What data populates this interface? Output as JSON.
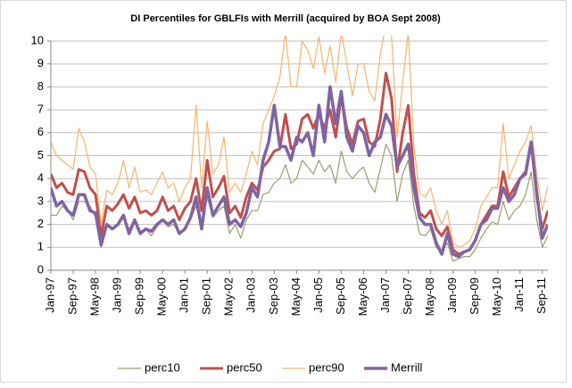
{
  "chart_data": {
    "type": "line",
    "title": "DI Percentiles for GBLFIs with Merrill (acquired by BOA Sept 2008)",
    "categories": [
      "Jan-97",
      null,
      null,
      null,
      "Sep-97",
      null,
      null,
      null,
      "May-98",
      null,
      null,
      null,
      "Jan-99",
      null,
      null,
      null,
      "Sep-99",
      null,
      null,
      null,
      "May-00",
      null,
      null,
      null,
      "Jan-01",
      null,
      null,
      null,
      "Sep-01",
      null,
      null,
      null,
      "May-02",
      null,
      null,
      null,
      "Jan-03",
      null,
      null,
      null,
      "Sep-03",
      null,
      null,
      null,
      "May-04",
      null,
      null,
      null,
      "Jan-05",
      null,
      null,
      null,
      "Sep-05",
      null,
      null,
      null,
      "May-06",
      null,
      null,
      null,
      "Jan-07",
      null,
      null,
      null,
      "Sep-07",
      null,
      null,
      null,
      "May-08",
      null,
      null,
      null,
      "Jan-09",
      null,
      null,
      null,
      "Sep-09",
      null,
      null,
      null,
      "May-10",
      null,
      null,
      null,
      "Jan-11",
      null,
      null,
      null,
      "Sep-11",
      null
    ],
    "series": [
      {
        "name": "perc10",
        "color": "#9c9b6d",
        "width": 1.2,
        "values": [
          2.4,
          2.4,
          2.8,
          2.6,
          2.2,
          3.0,
          3.0,
          2.8,
          2.3,
          1.0,
          2.0,
          1.8,
          2.0,
          2.3,
          1.8,
          2.2,
          1.7,
          1.8,
          1.5,
          1.9,
          2.2,
          1.9,
          2.0,
          1.6,
          1.8,
          2.2,
          2.8,
          1.8,
          3.2,
          2.3,
          2.6,
          2.8,
          1.6,
          2.0,
          1.4,
          2.2,
          2.6,
          2.6,
          3.3,
          3.4,
          3.8,
          4.0,
          4.6,
          3.8,
          4.0,
          4.8,
          4.5,
          4.2,
          4.8,
          4.3,
          4.6,
          3.8,
          5.2,
          4.3,
          4.0,
          4.3,
          4.5,
          3.8,
          3.4,
          4.4,
          5.5,
          5.0,
          3.0,
          4.2,
          4.8,
          2.8,
          1.6,
          1.5,
          1.8,
          1.0,
          0.8,
          1.2,
          0.4,
          0.5,
          0.6,
          0.6,
          0.9,
          1.4,
          1.8,
          2.1,
          2.0,
          3.0,
          2.2,
          2.6,
          2.8,
          3.3,
          4.3,
          2.2,
          1.0,
          1.5
        ]
      },
      {
        "name": "perc50",
        "color": "#c0504d",
        "width": 3,
        "values": [
          4.2,
          3.6,
          3.8,
          3.4,
          3.3,
          4.4,
          4.3,
          3.6,
          3.3,
          1.5,
          2.8,
          2.6,
          2.9,
          3.3,
          2.7,
          3.2,
          2.5,
          2.6,
          2.4,
          2.6,
          3.2,
          2.6,
          2.8,
          2.2,
          2.7,
          3.0,
          4.0,
          2.6,
          4.8,
          3.2,
          3.6,
          4.1,
          2.5,
          2.8,
          2.3,
          3.2,
          3.8,
          3.5,
          4.5,
          4.8,
          5.2,
          5.3,
          6.8,
          5.3,
          5.5,
          6.6,
          6.8,
          6.2,
          6.8,
          6.2,
          7.0,
          5.8,
          7.6,
          6.2,
          5.5,
          6.5,
          6.6,
          5.6,
          5.4,
          6.6,
          8.6,
          7.5,
          4.3,
          6.0,
          7.2,
          4.2,
          2.5,
          2.3,
          2.6,
          1.8,
          1.5,
          1.9,
          0.9,
          0.7,
          0.8,
          0.9,
          1.3,
          2.0,
          2.4,
          2.8,
          2.8,
          4.3,
          3.2,
          3.6,
          4.0,
          4.3,
          5.6,
          3.2,
          1.8,
          2.6
        ]
      },
      {
        "name": "perc90",
        "color": "#f5b56b",
        "width": 1.2,
        "values": [
          5.6,
          5.0,
          4.8,
          4.6,
          4.4,
          6.2,
          5.6,
          4.5,
          4.2,
          2.0,
          3.5,
          3.3,
          3.8,
          4.8,
          3.6,
          4.5,
          3.4,
          3.5,
          3.3,
          3.8,
          4.3,
          3.6,
          3.8,
          3.0,
          3.6,
          4.0,
          7.2,
          3.6,
          6.5,
          4.2,
          4.6,
          5.8,
          3.4,
          3.8,
          3.4,
          4.2,
          5.2,
          4.6,
          6.4,
          7.0,
          7.6,
          8.4,
          10.4,
          8.0,
          8.0,
          10.0,
          9.6,
          8.8,
          10.2,
          8.6,
          9.8,
          8.2,
          10.4,
          9.0,
          7.6,
          9.0,
          9.0,
          7.8,
          7.4,
          9.4,
          10.8,
          10.2,
          5.8,
          8.2,
          10.4,
          5.4,
          3.4,
          3.2,
          3.6,
          2.6,
          2.0,
          2.6,
          1.2,
          1.0,
          1.1,
          1.3,
          1.8,
          2.8,
          3.2,
          3.6,
          3.6,
          6.4,
          4.0,
          4.6,
          5.2,
          5.6,
          6.3,
          4.2,
          2.6,
          3.7
        ]
      },
      {
        "name": "Merrill",
        "color": "#8064a2",
        "width": 3.5,
        "values": [
          3.6,
          2.8,
          3.0,
          2.6,
          2.4,
          3.3,
          3.3,
          2.6,
          2.5,
          1.1,
          2.0,
          1.8,
          2.0,
          2.4,
          1.6,
          2.2,
          1.6,
          1.8,
          1.7,
          2.0,
          2.2,
          2.0,
          2.2,
          1.6,
          1.8,
          2.3,
          3.2,
          1.8,
          3.6,
          2.4,
          2.8,
          3.2,
          2.0,
          2.2,
          1.9,
          2.5,
          3.6,
          3.2,
          4.8,
          5.6,
          7.2,
          5.4,
          5.4,
          4.8,
          5.8,
          5.6,
          6.0,
          5.0,
          7.2,
          5.6,
          8.0,
          6.4,
          7.8,
          5.8,
          5.2,
          6.3,
          6.0,
          5.0,
          5.6,
          5.8,
          6.8,
          6.3,
          4.5,
          5.0,
          5.5,
          3.6,
          2.3,
          2.0,
          2.0,
          1.2,
          0.7,
          1.6,
          0.7,
          0.6,
          0.8,
          0.9,
          1.3,
          2.0,
          2.2,
          2.7,
          2.7,
          3.6,
          3.0,
          3.3,
          4.0,
          4.2,
          5.6,
          3.4,
          1.4,
          2.0
        ]
      }
    ],
    "ylim": [
      0,
      10
    ],
    "yticks": [
      0,
      1,
      2,
      3,
      4,
      5,
      6,
      7,
      8,
      9,
      10
    ],
    "grid": true,
    "legend": "bottom"
  }
}
